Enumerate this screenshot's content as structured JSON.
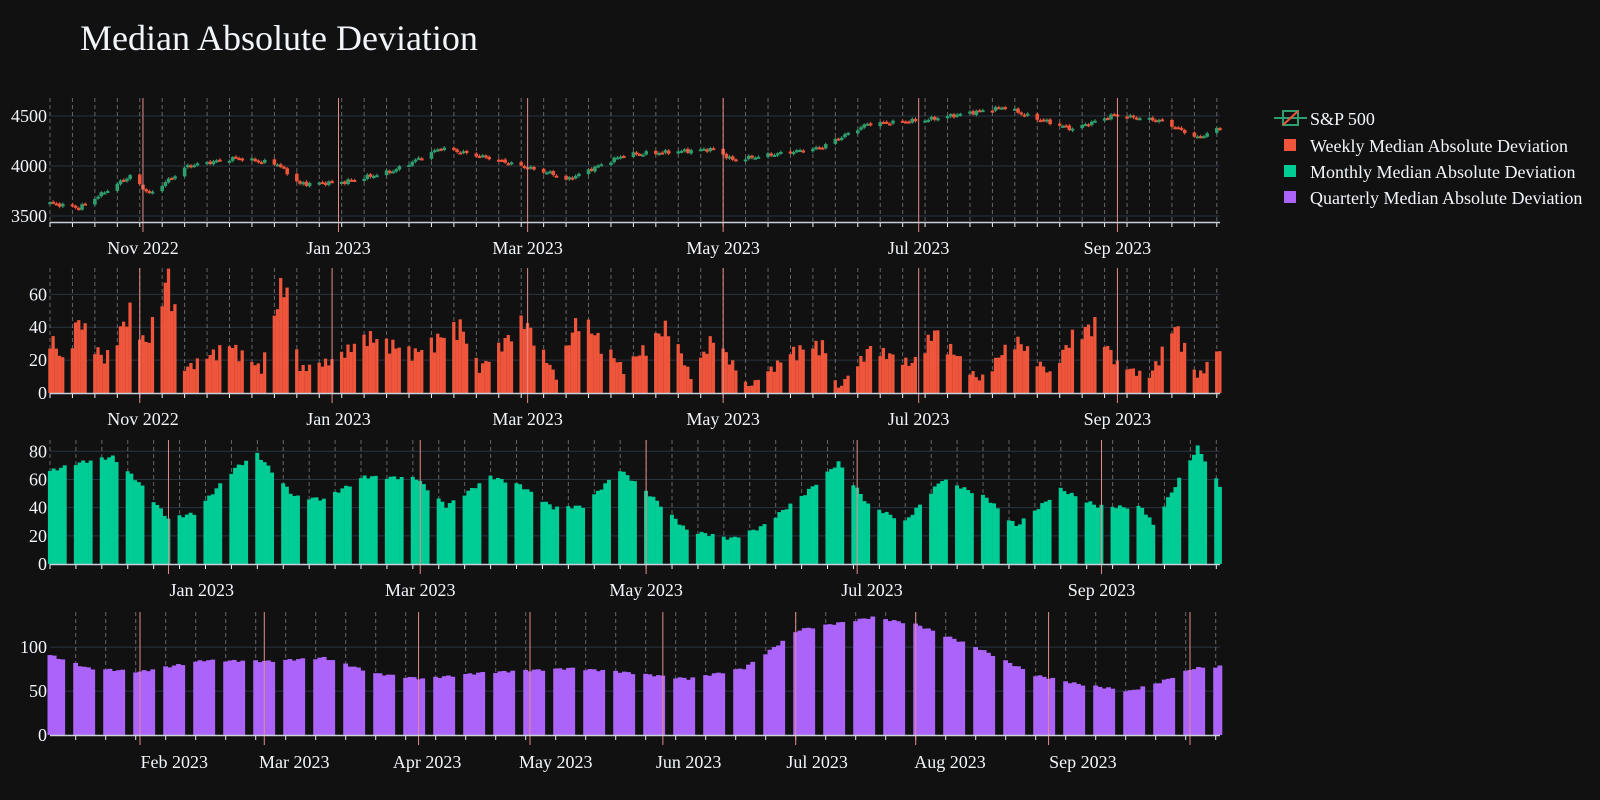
{
  "title": "Median Absolute Deviation",
  "colors": {
    "background": "#111111",
    "grid": "#283442",
    "up": "#2e9e6e",
    "down": "#ef553b",
    "weekly": "#ef553b",
    "monthly": "#00cc96",
    "quarterly": "#ab63fa",
    "vline": "#e58c8c",
    "vline_minor": "#aaaaaa",
    "text": "#f2f5fa"
  },
  "legend": {
    "position": "top-right",
    "items": [
      {
        "label": "S&P 500",
        "color": "#ef553b",
        "kind": "candlestick"
      },
      {
        "label": "Weekly Median Absolute Deviation",
        "color": "#ef553b",
        "kind": "bar"
      },
      {
        "label": "Monthly Median Absolute Deviation",
        "color": "#00cc96",
        "kind": "bar"
      },
      {
        "label": "Quarterly Median Absolute Deviation",
        "color": "#ab63fa",
        "kind": "bar"
      }
    ]
  },
  "chart_data": [
    {
      "type": "candlestick",
      "name": "S&P 500",
      "x_range": [
        "2022-10-03",
        "2023-10-03"
      ],
      "ylim": [
        3440,
        4680
      ],
      "yticks": [
        3500,
        4000,
        4500
      ],
      "xtick_labels": [
        {
          "date": "2022-11-01",
          "label": "Nov 2022"
        },
        {
          "date": "2023-01-01",
          "label": "Jan 2023"
        },
        {
          "date": "2023-03-01",
          "label": "Mar 2023"
        },
        {
          "date": "2023-05-01",
          "label": "May 2023"
        },
        {
          "date": "2023-07-01",
          "label": "Jul 2023"
        },
        {
          "date": "2023-09-01",
          "label": "Sep 2023"
        }
      ],
      "close_trend": [
        [
          "2022-10-03",
          3630
        ],
        [
          "2022-10-12",
          3580
        ],
        [
          "2022-10-28",
          3900
        ],
        [
          "2022-11-03",
          3720
        ],
        [
          "2022-11-15",
          4000
        ],
        [
          "2022-11-30",
          4080
        ],
        [
          "2022-12-13",
          4020
        ],
        [
          "2022-12-20",
          3820
        ],
        [
          "2023-01-03",
          3840
        ],
        [
          "2023-01-18",
          3950
        ],
        [
          "2023-02-02",
          4180
        ],
        [
          "2023-02-17",
          4080
        ],
        [
          "2023-03-09",
          3920
        ],
        [
          "2023-03-13",
          3860
        ],
        [
          "2023-03-31",
          4110
        ],
        [
          "2023-04-28",
          4170
        ],
        [
          "2023-05-04",
          4060
        ],
        [
          "2023-05-31",
          4180
        ],
        [
          "2023-06-15",
          4420
        ],
        [
          "2023-07-03",
          4460
        ],
        [
          "2023-07-28",
          4590
        ],
        [
          "2023-08-03",
          4510
        ],
        [
          "2023-08-18",
          4370
        ],
        [
          "2023-08-31",
          4510
        ],
        [
          "2023-09-15",
          4450
        ],
        [
          "2023-09-26",
          4280
        ],
        [
          "2023-10-03",
          4380
        ]
      ]
    },
    {
      "type": "bar",
      "name": "Weekly Median Absolute Deviation",
      "x_range": [
        "2022-10-03",
        "2023-10-03"
      ],
      "ylim": [
        0,
        76
      ],
      "yticks": [
        0,
        20,
        40,
        60
      ],
      "xtick_labels": [
        {
          "date": "2022-11-01",
          "label": "Nov 2022"
        },
        {
          "date": "2023-01-01",
          "label": "Jan 2023"
        },
        {
          "date": "2023-03-01",
          "label": "Mar 2023"
        },
        {
          "date": "2023-05-01",
          "label": "May 2023"
        },
        {
          "date": "2023-07-01",
          "label": "Jul 2023"
        },
        {
          "date": "2023-09-01",
          "label": "Sep 2023"
        }
      ],
      "trend": [
        [
          "2022-10-03",
          36
        ],
        [
          "2022-10-07",
          20
        ],
        [
          "2022-10-12",
          45
        ],
        [
          "2022-10-20",
          20
        ],
        [
          "2022-10-28",
          50
        ],
        [
          "2022-11-02",
          30
        ],
        [
          "2022-11-09",
          72
        ],
        [
          "2022-11-14",
          15
        ],
        [
          "2022-11-28",
          30
        ],
        [
          "2022-12-08",
          15
        ],
        [
          "2022-12-15",
          72
        ],
        [
          "2022-12-20",
          15
        ],
        [
          "2022-12-30",
          20
        ],
        [
          "2023-01-10",
          35
        ],
        [
          "2023-01-25",
          25
        ],
        [
          "2023-02-08",
          42
        ],
        [
          "2023-02-14",
          15
        ],
        [
          "2023-02-28",
          45
        ],
        [
          "2023-03-10",
          10
        ],
        [
          "2023-03-17",
          48
        ],
        [
          "2023-03-31",
          15
        ],
        [
          "2023-04-14",
          42
        ],
        [
          "2023-04-21",
          10
        ],
        [
          "2023-04-28",
          35
        ],
        [
          "2023-05-09",
          4
        ],
        [
          "2023-05-23",
          26
        ],
        [
          "2023-06-01",
          30
        ],
        [
          "2023-06-06",
          3
        ],
        [
          "2023-06-16",
          28
        ],
        [
          "2023-06-29",
          18
        ],
        [
          "2023-07-06",
          38
        ],
        [
          "2023-07-20",
          8
        ],
        [
          "2023-07-31",
          34
        ],
        [
          "2023-08-11",
          12
        ],
        [
          "2023-08-18",
          35
        ],
        [
          "2023-08-25",
          42
        ],
        [
          "2023-09-01",
          18
        ],
        [
          "2023-09-11",
          10
        ],
        [
          "2023-09-19",
          42
        ],
        [
          "2023-09-26",
          10
        ],
        [
          "2023-10-03",
          28
        ]
      ]
    },
    {
      "type": "bar",
      "name": "Monthly Median Absolute Deviation",
      "x_range": [
        "2022-11-21",
        "2023-10-03"
      ],
      "ylim": [
        0,
        88
      ],
      "yticks": [
        0,
        20,
        40,
        60,
        80
      ],
      "xtick_labels": [
        {
          "date": "2023-01-01",
          "label": "Jan 2023"
        },
        {
          "date": "2023-03-01",
          "label": "Mar 2023"
        },
        {
          "date": "2023-05-01",
          "label": "May 2023"
        },
        {
          "date": "2023-07-01",
          "label": "Jul 2023"
        },
        {
          "date": "2023-09-01",
          "label": "Sep 2023"
        }
      ],
      "trend": [
        [
          "2022-11-21",
          66
        ],
        [
          "2022-11-29",
          72
        ],
        [
          "2022-12-08",
          76
        ],
        [
          "2022-12-15",
          58
        ],
        [
          "2022-12-23",
          32
        ],
        [
          "2022-12-30",
          36
        ],
        [
          "2023-01-10",
          68
        ],
        [
          "2023-01-16",
          78
        ],
        [
          "2023-01-26",
          48
        ],
        [
          "2023-02-03",
          46
        ],
        [
          "2023-02-14",
          62
        ],
        [
          "2023-02-28",
          61
        ],
        [
          "2023-03-08",
          41
        ],
        [
          "2023-03-20",
          62
        ],
        [
          "2023-03-28",
          56
        ],
        [
          "2023-04-06",
          40
        ],
        [
          "2023-04-14",
          41
        ],
        [
          "2023-04-24",
          67
        ],
        [
          "2023-05-03",
          47
        ],
        [
          "2023-05-12",
          24
        ],
        [
          "2023-05-24",
          18
        ],
        [
          "2023-06-01",
          26
        ],
        [
          "2023-06-13",
          50
        ],
        [
          "2023-06-22",
          72
        ],
        [
          "2023-06-30",
          42
        ],
        [
          "2023-07-10",
          30
        ],
        [
          "2023-07-20",
          60
        ],
        [
          "2023-08-01",
          47
        ],
        [
          "2023-08-09",
          27
        ],
        [
          "2023-08-21",
          53
        ],
        [
          "2023-08-31",
          41
        ],
        [
          "2023-09-12",
          40
        ],
        [
          "2023-09-15",
          28
        ],
        [
          "2023-09-27",
          83
        ],
        [
          "2023-10-03",
          55
        ]
      ]
    },
    {
      "type": "bar",
      "name": "Quarterly Median Absolute Deviation",
      "x_range": [
        "2023-01-03",
        "2023-10-03"
      ],
      "ylim": [
        0,
        140
      ],
      "yticks": [
        0,
        50,
        100
      ],
      "xtick_labels": [
        {
          "date": "2023-02-01",
          "label": "Feb 2023"
        },
        {
          "date": "2023-03-01",
          "label": "Mar 2023"
        },
        {
          "date": "2023-04-01",
          "label": "Apr 2023"
        },
        {
          "date": "2023-05-01",
          "label": "May 2023"
        },
        {
          "date": "2023-06-01",
          "label": "Jun 2023"
        },
        {
          "date": "2023-07-01",
          "label": "Jul 2023"
        },
        {
          "date": "2023-08-01",
          "label": "Aug 2023"
        },
        {
          "date": "2023-09-01",
          "label": "Sep 2023"
        }
      ],
      "trend": [
        [
          "2023-01-03",
          91
        ],
        [
          "2023-01-12",
          76
        ],
        [
          "2023-01-24",
          72
        ],
        [
          "2023-02-08",
          85
        ],
        [
          "2023-02-23",
          84
        ],
        [
          "2023-03-08",
          88
        ],
        [
          "2023-03-20",
          70
        ],
        [
          "2023-03-31",
          64
        ],
        [
          "2023-04-14",
          71
        ],
        [
          "2023-05-05",
          76
        ],
        [
          "2023-05-16",
          72
        ],
        [
          "2023-05-24",
          68
        ],
        [
          "2023-06-01",
          64
        ],
        [
          "2023-06-14",
          76
        ],
        [
          "2023-06-27",
          120
        ],
        [
          "2023-07-14",
          134
        ],
        [
          "2023-07-24",
          126
        ],
        [
          "2023-08-08",
          98
        ],
        [
          "2023-08-21",
          68
        ],
        [
          "2023-08-31",
          58
        ],
        [
          "2023-09-12",
          50
        ],
        [
          "2023-09-19",
          60
        ],
        [
          "2023-09-27",
          76
        ],
        [
          "2023-10-03",
          78
        ]
      ]
    }
  ]
}
